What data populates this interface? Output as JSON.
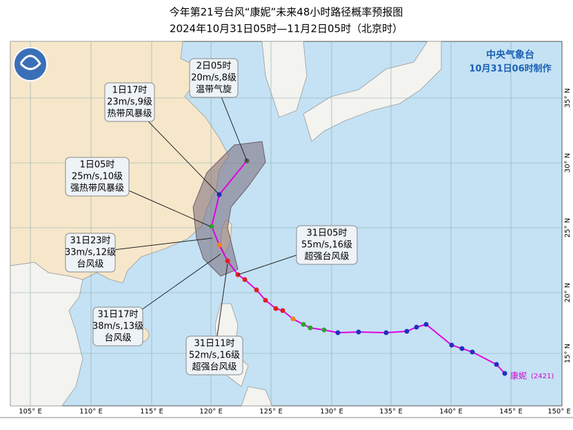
{
  "title": "今年第21号台风“康妮”未来48小时路径概率预报图",
  "subtitle": "2024年10月31日05时—11月2日05时（北京时）",
  "agency": "中央气象台",
  "issued": "10月31日06时制作",
  "storm_label": "康妮",
  "storm_id": "(2421)",
  "longitude_labels": [
    "105° E",
    "110° E",
    "115° E",
    "120° E",
    "125° E",
    "130° E",
    "135° E",
    "140° E",
    "145° E",
    "150° E"
  ],
  "latitude_labels": [
    "35° N",
    "30° N",
    "25° N",
    "20° N",
    "15° N"
  ],
  "callouts": [
    {
      "lines": [
        "2日05时",
        "20m/s,8级",
        "温带气旋"
      ]
    },
    {
      "lines": [
        "1日17时",
        "23m/s,9级",
        "热带风暴级"
      ]
    },
    {
      "lines": [
        "1日05时",
        "25m/s,10级",
        "强热带风暴级"
      ]
    },
    {
      "lines": [
        "31日23时",
        "33m/s,12级",
        "台风级"
      ]
    },
    {
      "lines": [
        "31日05时",
        "55m/s,16级",
        "超强台风级"
      ]
    },
    {
      "lines": [
        "31日17时",
        "38m/s,13级",
        "台风级"
      ]
    },
    {
      "lines": [
        "31日11时",
        "52m/s,16级",
        "超强台风级"
      ]
    }
  ]
}
